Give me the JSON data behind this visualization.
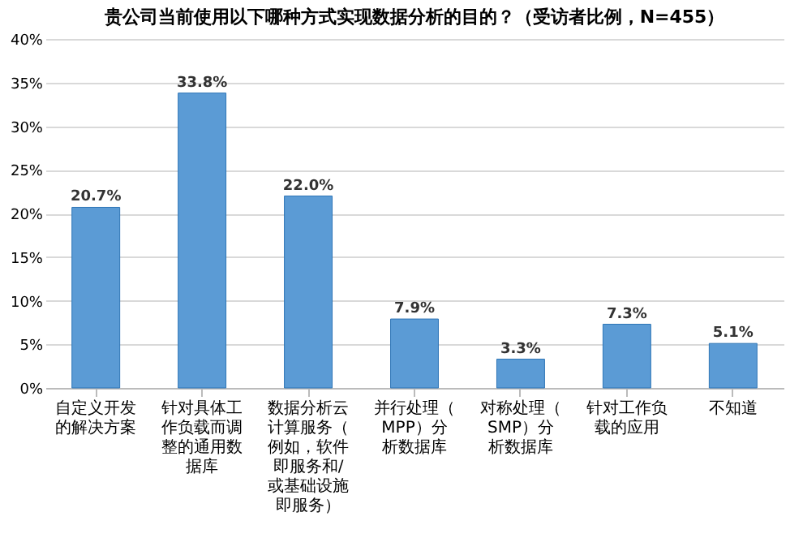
{
  "chart_data": {
    "type": "bar",
    "title": "贵公司当前使用以下哪种方式实现数据分析的目的？（受访者比例，N=455）",
    "categories": [
      "自定义开发的解决方案",
      "针对具体工作负载而调整的通用数据库",
      "数据分析云计算服务（例如，软件即服务和/或基础设施即服务）",
      "并行处理（MPP）分析数据库",
      "对称处理（SMP）分析数据库",
      "针对工作负载的应用",
      "不知道"
    ],
    "values": [
      20.7,
      33.8,
      22.0,
      7.9,
      3.3,
      7.3,
      5.1
    ],
    "value_labels": [
      "20.7%",
      "33.8%",
      "22.0%",
      "7.9%",
      "3.3%",
      "7.3%",
      "5.1%"
    ],
    "color": "#5b9bd5",
    "ylim": [
      0,
      40
    ],
    "yticks": [
      {
        "value": 0,
        "label": "0%"
      },
      {
        "value": 5,
        "label": "5%"
      },
      {
        "value": 10,
        "label": "10%"
      },
      {
        "value": 15,
        "label": "15%"
      },
      {
        "value": 20,
        "label": "20%"
      },
      {
        "value": 25,
        "label": "25%"
      },
      {
        "value": 30,
        "label": "30%"
      },
      {
        "value": 35,
        "label": "35%"
      },
      {
        "value": 40,
        "label": "40%"
      }
    ],
    "grid": "y"
  }
}
